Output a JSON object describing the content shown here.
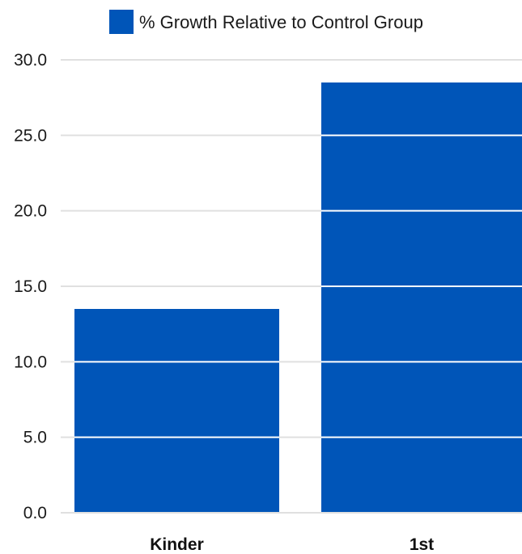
{
  "chart_data": {
    "type": "bar",
    "categories": [
      "Kinder",
      "1st"
    ],
    "series": [
      {
        "name": "% Growth Relative to Control Group",
        "values": [
          13.5,
          28.5
        ]
      }
    ],
    "ylim": [
      0,
      30
    ],
    "yticks": [
      "0.0",
      "5.0",
      "10.0",
      "15.0",
      "20.0",
      "25.0",
      "30.0"
    ],
    "ytick_values": [
      0,
      5,
      10,
      15,
      20,
      25,
      30
    ],
    "title": "",
    "xlabel": "",
    "ylabel": "",
    "legend_position": "top-center",
    "grid": true,
    "colors": {
      "bar": "#0055b8",
      "grid": "#e0e0e0",
      "grid_over_bar": "#ffffff"
    }
  }
}
